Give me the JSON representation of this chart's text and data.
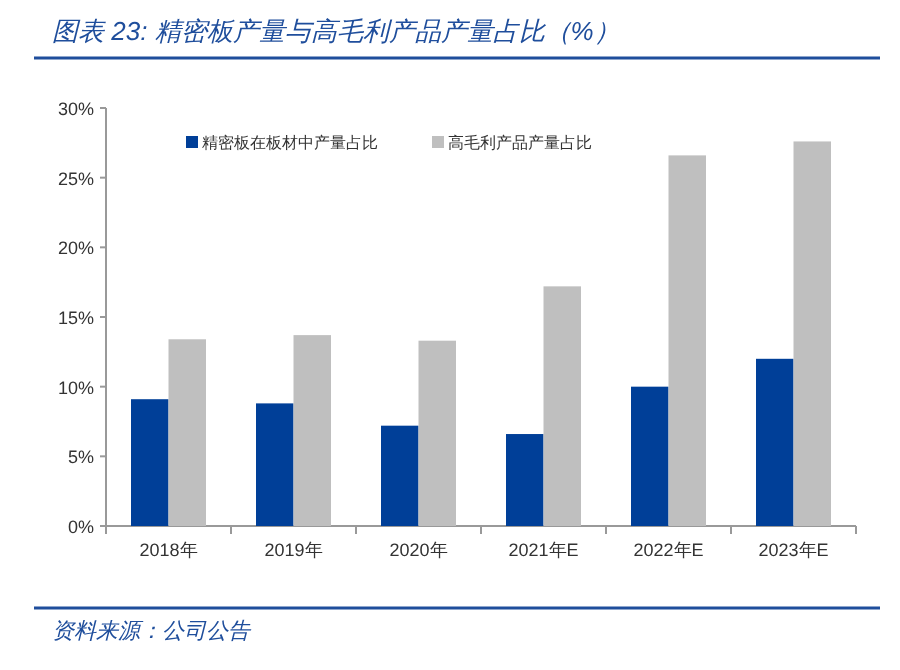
{
  "chart_data": {
    "type": "bar",
    "title": "图表 23:  精密板产量与高毛利产品产量占比（%）",
    "categories": [
      "2018年",
      "2019年",
      "2020年",
      "2021年E",
      "2022年E",
      "2023年E"
    ],
    "series": [
      {
        "name": "精密板在板材中产量占比",
        "color": "#003f98",
        "values": [
          9.1,
          8.8,
          7.2,
          6.6,
          10.0,
          12.0
        ]
      },
      {
        "name": "高毛利产品产量占比",
        "color": "#bfbfbf",
        "values": [
          13.4,
          13.7,
          13.3,
          17.2,
          26.6,
          27.6
        ]
      }
    ],
    "ylim": [
      0,
      30
    ],
    "yticks": [
      {
        "value": 0,
        "label": "0%"
      },
      {
        "value": 5,
        "label": "5%"
      },
      {
        "value": 10,
        "label": "10%"
      },
      {
        "value": 15,
        "label": "15%"
      },
      {
        "value": 20,
        "label": "20%"
      },
      {
        "value": 25,
        "label": "25%"
      },
      {
        "value": 30,
        "label": "30%"
      }
    ],
    "grid": false,
    "legend": "top left",
    "annotations": [
      "资料来源：公司公告"
    ]
  }
}
